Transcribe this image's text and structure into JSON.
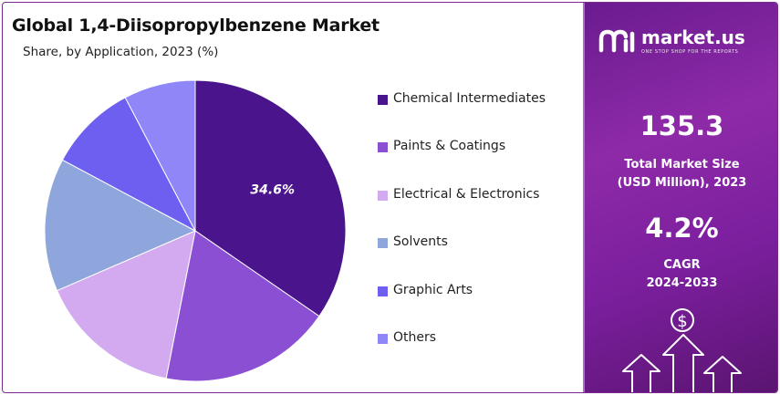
{
  "header": {
    "title": "Global 1,4-Diisopropylbenzene  Market",
    "subtitle": "Share, by Application, 2023 (%)"
  },
  "chart_data": {
    "type": "pie",
    "title": "Global 1,4-Diisopropylbenzene  Market",
    "subtitle": "Share, by Application, 2023 (%)",
    "legend_position": "right",
    "slices": [
      {
        "label": "Chemical Intermediates",
        "value": 34.6,
        "color": "#4a148c",
        "data_label": "34.6%"
      },
      {
        "label": "Paints & Coatings",
        "value": 18.5,
        "color": "#8a4fd3",
        "data_label": ""
      },
      {
        "label": "Electrical & Electronics",
        "value": 15.4,
        "color": "#d3aaf0",
        "data_label": ""
      },
      {
        "label": "Solvents",
        "value": 14.3,
        "color": "#8fa6dc",
        "data_label": ""
      },
      {
        "label": "Graphic Arts",
        "value": 9.5,
        "color": "#6d5ff0",
        "data_label": ""
      },
      {
        "label": "Others",
        "value": 7.7,
        "color": "#8f86f7",
        "data_label": ""
      }
    ]
  },
  "sidebar": {
    "brand_name": "market.us",
    "brand_tagline": "ONE STOP SHOP FOR THE REPORTS",
    "market_size_value": "135.3",
    "market_size_label_line1": "Total Market Size",
    "market_size_label_line2": "(USD Million), 2023",
    "cagr_value": "4.2%",
    "cagr_label_line1": "CAGR",
    "cagr_label_line2": "2024-2033",
    "dollar_symbol": "$",
    "icons": [
      "market-us-logo-icon",
      "dollar-icon",
      "up-arrow-icon"
    ]
  }
}
